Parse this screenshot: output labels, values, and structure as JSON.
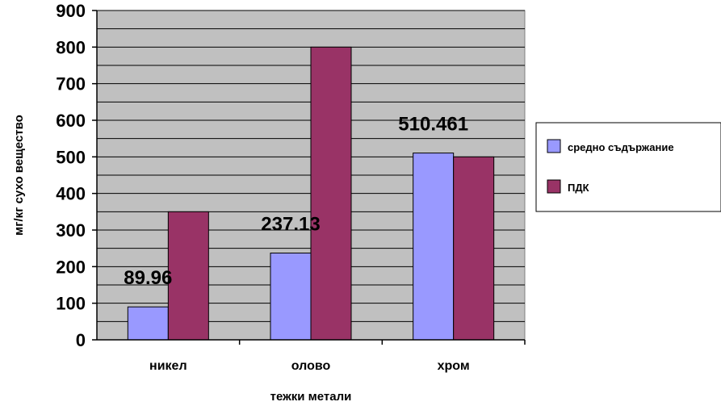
{
  "chart_data": {
    "type": "bar",
    "title": "",
    "xlabel": "тежки метали",
    "ylabel": "мг/кг  сухо вещество",
    "categories": [
      "никел",
      "олово",
      "хром"
    ],
    "series": [
      {
        "name": "средно съдържание",
        "values": [
          89.96,
          237.13,
          510.461
        ],
        "color": "#9999ff"
      },
      {
        "name": "ПДК",
        "values": [
          350,
          800,
          500
        ],
        "color": "#993366"
      }
    ],
    "data_labels": [
      "89.96",
      "237.13",
      "510.461"
    ],
    "ylim": [
      0,
      900
    ],
    "yticks": [
      0,
      100,
      200,
      300,
      400,
      500,
      600,
      700,
      800,
      900
    ],
    "grid": true,
    "legend_position": "right",
    "plot_background": "#c0c0c0"
  }
}
